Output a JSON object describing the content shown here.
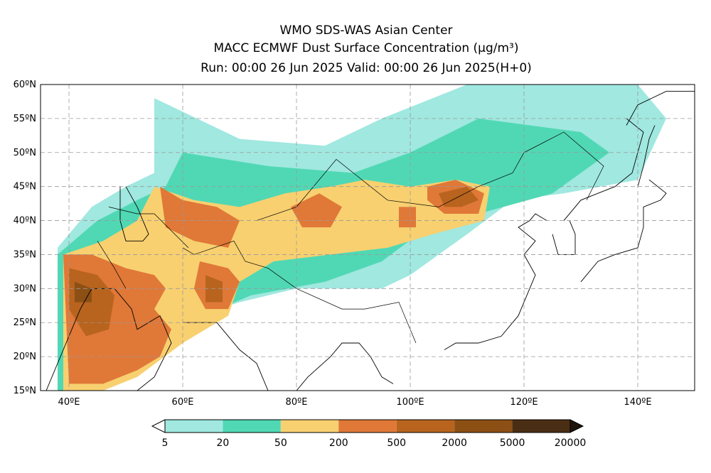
{
  "header": {
    "line1": "WMO SDS-WAS Asian Center",
    "line2": "MACC ECMWF Dust Surface Concentration (μg/m³)",
    "line3": "Run: 00:00 26 Jun 2025     Valid: 00:00 26 Jun 2025(H+0)"
  },
  "axes": {
    "lat_ticks": [
      "60ºN",
      "55ºN",
      "50ºN",
      "45ºN",
      "40ºN",
      "35ºN",
      "30ºN",
      "25ºN",
      "20ºN",
      "15ºN"
    ],
    "lon_ticks": [
      "40ºE",
      "60ºE",
      "80ºE",
      "100ºE",
      "120ºE",
      "140ºE"
    ],
    "lon_range": [
      35,
      150
    ],
    "lat_range": [
      15,
      60
    ],
    "grid": "dashed"
  },
  "colorbar": {
    "labels": [
      "5",
      "20",
      "50",
      "200",
      "500",
      "2000",
      "5000",
      "20000"
    ],
    "colors": [
      "#a0e8e0",
      "#50d8b4",
      "#f8d070",
      "#e07838",
      "#b8641e",
      "#8c5014",
      "#4a2e14"
    ]
  },
  "dust_regions": [
    {
      "level": 1,
      "color": "#a0e8e0",
      "poly": [
        [
          55,
          58
        ],
        [
          70,
          52
        ],
        [
          85,
          51
        ],
        [
          95,
          55
        ],
        [
          110,
          60
        ],
        [
          140,
          60
        ],
        [
          145,
          55
        ],
        [
          140,
          46
        ],
        [
          127,
          44
        ],
        [
          118,
          43
        ],
        [
          110,
          38
        ],
        [
          100,
          32
        ],
        [
          95,
          30
        ],
        [
          80,
          30
        ],
        [
          70,
          28
        ],
        [
          55,
          24
        ],
        [
          45,
          15
        ],
        [
          38,
          15
        ],
        [
          38,
          36
        ],
        [
          44,
          42
        ],
        [
          50,
          45
        ],
        [
          55,
          47
        ]
      ]
    },
    {
      "level": 2,
      "color": "#50d8b4",
      "poly": [
        [
          60,
          50
        ],
        [
          75,
          48
        ],
        [
          90,
          47
        ],
        [
          100,
          50
        ],
        [
          112,
          55
        ],
        [
          130,
          53
        ],
        [
          135,
          50
        ],
        [
          125,
          44
        ],
        [
          112,
          41
        ],
        [
          103,
          39
        ],
        [
          95,
          34
        ],
        [
          85,
          31
        ],
        [
          72,
          29
        ],
        [
          58,
          24
        ],
        [
          46,
          15
        ],
        [
          38,
          15
        ],
        [
          38,
          35
        ],
        [
          45,
          40
        ],
        [
          52,
          43
        ],
        [
          57,
          45
        ]
      ]
    },
    {
      "level": 3,
      "color": "#f8d070",
      "poly": [
        [
          55,
          45
        ],
        [
          62,
          43
        ],
        [
          70,
          42
        ],
        [
          78,
          44
        ],
        [
          86,
          45
        ],
        [
          92,
          46
        ],
        [
          100,
          45
        ],
        [
          108,
          46
        ],
        [
          114,
          45
        ],
        [
          113,
          40
        ],
        [
          104,
          38
        ],
        [
          96,
          36
        ],
        [
          86,
          35
        ],
        [
          76,
          34
        ],
        [
          70,
          31
        ],
        [
          68,
          26
        ],
        [
          60,
          22
        ],
        [
          52,
          17
        ],
        [
          46,
          15
        ],
        [
          39,
          15
        ],
        [
          39,
          35
        ],
        [
          46,
          37
        ],
        [
          52,
          40
        ]
      ]
    },
    {
      "level": 4,
      "color": "#e07838",
      "poly": [
        [
          39,
          35
        ],
        [
          44,
          35
        ],
        [
          50,
          33
        ],
        [
          55,
          32
        ],
        [
          57,
          30
        ],
        [
          55,
          27
        ],
        [
          58,
          24
        ],
        [
          56,
          20
        ],
        [
          52,
          18
        ],
        [
          46,
          16
        ],
        [
          40,
          16
        ]
      ]
    },
    {
      "level": 4,
      "color": "#e07838",
      "poly": [
        [
          56,
          45
        ],
        [
          60,
          43
        ],
        [
          66,
          42
        ],
        [
          70,
          40
        ],
        [
          68,
          36
        ],
        [
          62,
          37
        ],
        [
          57,
          39
        ]
      ]
    },
    {
      "level": 4,
      "color": "#e07838",
      "poly": [
        [
          63,
          34
        ],
        [
          68,
          33
        ],
        [
          70,
          31
        ],
        [
          68,
          27
        ],
        [
          64,
          27
        ],
        [
          62,
          30
        ]
      ]
    },
    {
      "level": 4,
      "color": "#e07838",
      "poly": [
        [
          79,
          42
        ],
        [
          84,
          44
        ],
        [
          88,
          42
        ],
        [
          86,
          39
        ],
        [
          81,
          39
        ]
      ]
    },
    {
      "level": 4,
      "color": "#e07838",
      "poly": [
        [
          103,
          45
        ],
        [
          108,
          46
        ],
        [
          113,
          44
        ],
        [
          112,
          41
        ],
        [
          106,
          41
        ],
        [
          103,
          43
        ]
      ]
    },
    {
      "level": 4,
      "color": "#e07838",
      "poly": [
        [
          98,
          42
        ],
        [
          101,
          42
        ],
        [
          101,
          39
        ],
        [
          98,
          39
        ]
      ]
    },
    {
      "level": 5,
      "color": "#b8641e",
      "poly": [
        [
          40,
          33
        ],
        [
          45,
          32
        ],
        [
          48,
          29
        ],
        [
          47,
          24
        ],
        [
          43,
          23
        ],
        [
          40,
          27
        ]
      ]
    },
    {
      "level": 5,
      "color": "#b8641e",
      "poly": [
        [
          64,
          32
        ],
        [
          67,
          31
        ],
        [
          67,
          28
        ],
        [
          64,
          28
        ]
      ]
    },
    {
      "level": 5,
      "color": "#b8641e",
      "poly": [
        [
          105,
          44
        ],
        [
          110,
          45
        ],
        [
          112,
          43
        ],
        [
          109,
          42
        ],
        [
          106,
          42
        ]
      ]
    },
    {
      "level": 6,
      "color": "#8c5014",
      "poly": [
        [
          41,
          31
        ],
        [
          44,
          30
        ],
        [
          44,
          28
        ],
        [
          41,
          28
        ]
      ]
    }
  ]
}
